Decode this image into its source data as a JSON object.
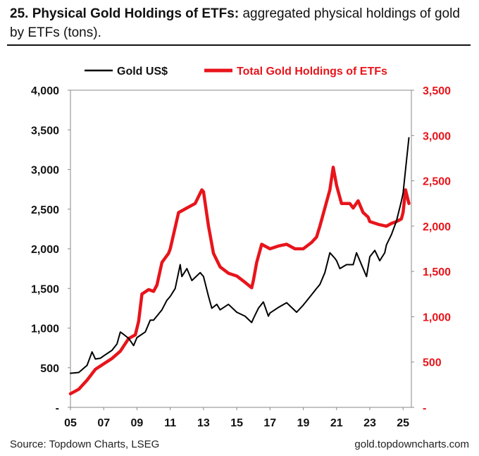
{
  "header": {
    "title_bold": "25. Physical Gold Holdings of ETFs:",
    "title_rest": " aggregated physical holdings of gold by ETFs (tons)."
  },
  "footer": {
    "source": "Source: Topdown Charts, LSEG",
    "website": "gold.topdowncharts.com"
  },
  "chart_data": {
    "type": "line",
    "title": "25. Physical Gold Holdings of ETFs: aggregated physical holdings of gold by ETFs (tons).",
    "x_ticks": [
      "05",
      "07",
      "09",
      "11",
      "13",
      "15",
      "17",
      "19",
      "21",
      "23",
      "25"
    ],
    "x_range": [
      2005,
      2025.5
    ],
    "y_left": {
      "range": [
        0,
        4000
      ],
      "ticks": [
        "-",
        "500",
        "1,000",
        "1,500",
        "2,000",
        "2,500",
        "3,000",
        "3,500",
        "4,000"
      ],
      "color": "#111111"
    },
    "y_right": {
      "range": [
        0,
        3500
      ],
      "ticks": [
        "-",
        "500",
        "1,000",
        "1,500",
        "2,000",
        "2,500",
        "3,000",
        "3,500"
      ],
      "color": "#e8141b"
    },
    "legend_position": "top",
    "grid": false,
    "series": [
      {
        "name": "Gold US$",
        "axis": "left",
        "color": "#000000",
        "x": [
          2005.0,
          2005.5,
          2006.0,
          2006.3,
          2006.5,
          2006.8,
          2007.0,
          2007.5,
          2007.8,
          2008.0,
          2008.2,
          2008.5,
          2008.8,
          2009.0,
          2009.5,
          2009.8,
          2010.0,
          2010.5,
          2010.8,
          2011.0,
          2011.3,
          2011.6,
          2011.7,
          2012.0,
          2012.3,
          2012.8,
          2013.0,
          2013.3,
          2013.5,
          2013.8,
          2014.0,
          2014.5,
          2015.0,
          2015.5,
          2015.9,
          2016.0,
          2016.3,
          2016.6,
          2016.9,
          2017.0,
          2017.5,
          2018.0,
          2018.6,
          2019.0,
          2019.5,
          2019.8,
          2020.0,
          2020.3,
          2020.6,
          2020.9,
          2021.0,
          2021.2,
          2021.6,
          2022.0,
          2022.2,
          2022.8,
          2023.0,
          2023.3,
          2023.6,
          2023.9,
          2024.0,
          2024.3,
          2024.6,
          2024.9,
          2025.0,
          2025.2,
          2025.35
        ],
        "values": [
          430,
          440,
          530,
          700,
          610,
          620,
          650,
          720,
          800,
          950,
          920,
          870,
          780,
          880,
          950,
          1100,
          1100,
          1230,
          1350,
          1400,
          1500,
          1800,
          1650,
          1750,
          1600,
          1700,
          1650,
          1400,
          1250,
          1300,
          1230,
          1300,
          1200,
          1150,
          1070,
          1120,
          1250,
          1330,
          1150,
          1190,
          1260,
          1320,
          1200,
          1290,
          1420,
          1500,
          1550,
          1700,
          1950,
          1880,
          1850,
          1750,
          1800,
          1800,
          1950,
          1650,
          1900,
          1980,
          1850,
          1950,
          2050,
          2180,
          2350,
          2600,
          2700,
          3100,
          3400
        ]
      },
      {
        "name": "Total Gold Holdings of ETFs",
        "axis": "right",
        "color": "#e8141b",
        "x": [
          2005.0,
          2005.5,
          2006.0,
          2006.5,
          2007.0,
          2007.5,
          2008.0,
          2008.5,
          2008.9,
          2009.1,
          2009.3,
          2009.7,
          2010.0,
          2010.2,
          2010.5,
          2010.9,
          2011.0,
          2011.5,
          2012.0,
          2012.5,
          2012.9,
          2013.0,
          2013.3,
          2013.6,
          2014.0,
          2014.5,
          2015.0,
          2015.5,
          2015.9,
          2016.0,
          2016.2,
          2016.5,
          2017.0,
          2017.5,
          2018.0,
          2018.5,
          2019.0,
          2019.5,
          2019.8,
          2020.0,
          2020.3,
          2020.6,
          2020.8,
          2021.0,
          2021.3,
          2021.8,
          2022.0,
          2022.3,
          2022.6,
          2022.9,
          2023.0,
          2023.5,
          2024.0,
          2024.3,
          2024.6,
          2024.9,
          2025.0,
          2025.15,
          2025.35
        ],
        "values": [
          150,
          200,
          300,
          420,
          480,
          540,
          620,
          760,
          800,
          950,
          1250,
          1300,
          1280,
          1350,
          1600,
          1700,
          1750,
          2150,
          2200,
          2250,
          2400,
          2380,
          2000,
          1700,
          1550,
          1480,
          1450,
          1380,
          1320,
          1400,
          1600,
          1800,
          1750,
          1780,
          1800,
          1750,
          1750,
          1820,
          1880,
          2000,
          2200,
          2400,
          2650,
          2450,
          2250,
          2250,
          2200,
          2280,
          2150,
          2100,
          2050,
          2020,
          2000,
          2030,
          2050,
          2080,
          2150,
          2400,
          2250
        ]
      }
    ]
  }
}
